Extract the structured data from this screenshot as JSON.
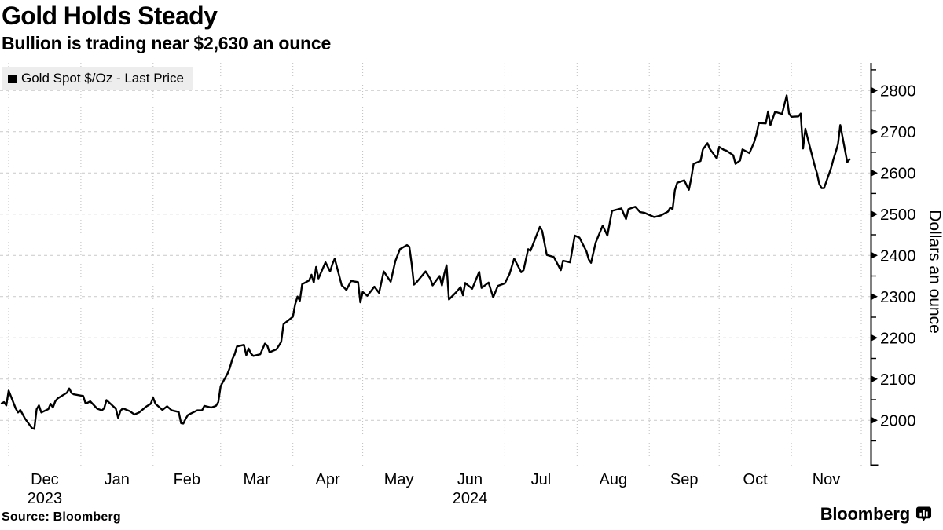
{
  "header": {
    "title": "Gold Holds Steady",
    "subtitle": "Bullion is trading near $2,630 an ounce"
  },
  "legend": {
    "label": "Gold Spot $/Oz - Last Price",
    "swatch_color": "#000000"
  },
  "footer": {
    "source": "Source: Bloomberg",
    "brand": "Bloomberg"
  },
  "colors": {
    "line": "#000000",
    "axis": "#000000",
    "grid_horizontal": "#c9c9c9",
    "grid_vertical": "#bdbdbd",
    "legend_bg": "#ededed",
    "background": "#ffffff",
    "text": "#000000"
  },
  "chart_data": {
    "type": "line",
    "title": "Gold Holds Steady",
    "subtitle": "Bullion is trading near $2,630 an ounce",
    "series_name": "Gold Spot $/Oz - Last Price",
    "xlabel": "",
    "ylabel": "Dollars an ounce",
    "grid": true,
    "legend_position": "top-left",
    "line_color": "#000000",
    "x_domain": [
      "2023-12-01",
      "2024-12-01"
    ],
    "ylim": [
      1890,
      2867
    ],
    "yticks_major": [
      2000,
      2100,
      2200,
      2300,
      2400,
      2500,
      2600,
      2700,
      2800
    ],
    "yticks_minor": [
      1950,
      2050,
      2150,
      2250,
      2350,
      2450,
      2550,
      2650,
      2750,
      2850
    ],
    "x_axis": {
      "months": [
        {
          "label": "Dec",
          "sub": "2023"
        },
        {
          "label": "Jan"
        },
        {
          "label": "Feb"
        },
        {
          "label": "Mar"
        },
        {
          "label": "Apr"
        },
        {
          "label": "May"
        },
        {
          "label": "Jun",
          "sub": "2024"
        },
        {
          "label": "Jul"
        },
        {
          "label": "Aug"
        },
        {
          "label": "Sep"
        },
        {
          "label": "Oct"
        },
        {
          "label": "Nov"
        }
      ]
    },
    "points": [
      [
        "2023-11-28",
        2041
      ],
      [
        "2023-11-29",
        2044
      ],
      [
        "2023-11-30",
        2036
      ],
      [
        "2023-12-01",
        2072
      ],
      [
        "2023-12-04",
        2029
      ],
      [
        "2023-12-05",
        2019
      ],
      [
        "2023-12-06",
        2025
      ],
      [
        "2023-12-08",
        2004
      ],
      [
        "2023-12-11",
        1981
      ],
      [
        "2023-12-12",
        1979
      ],
      [
        "2023-12-13",
        2027
      ],
      [
        "2023-12-14",
        2036
      ],
      [
        "2023-12-15",
        2019
      ],
      [
        "2023-12-18",
        2027
      ],
      [
        "2023-12-19",
        2040
      ],
      [
        "2023-12-20",
        2031
      ],
      [
        "2023-12-21",
        2046
      ],
      [
        "2023-12-22",
        2053
      ],
      [
        "2023-12-26",
        2067
      ],
      [
        "2023-12-27",
        2077
      ],
      [
        "2023-12-28",
        2066
      ],
      [
        "2023-12-29",
        2063
      ],
      [
        "2024-01-02",
        2059
      ],
      [
        "2024-01-03",
        2041
      ],
      [
        "2024-01-04",
        2043
      ],
      [
        "2024-01-05",
        2046
      ],
      [
        "2024-01-08",
        2028
      ],
      [
        "2024-01-10",
        2024
      ],
      [
        "2024-01-11",
        2029
      ],
      [
        "2024-01-12",
        2049
      ],
      [
        "2024-01-16",
        2028
      ],
      [
        "2024-01-17",
        2006
      ],
      [
        "2024-01-18",
        2023
      ],
      [
        "2024-01-19",
        2029
      ],
      [
        "2024-01-22",
        2022
      ],
      [
        "2024-01-24",
        2014
      ],
      [
        "2024-01-26",
        2019
      ],
      [
        "2024-01-29",
        2033
      ],
      [
        "2024-01-31",
        2040
      ],
      [
        "2024-02-01",
        2055
      ],
      [
        "2024-02-02",
        2040
      ],
      [
        "2024-02-05",
        2025
      ],
      [
        "2024-02-07",
        2034
      ],
      [
        "2024-02-09",
        2024
      ],
      [
        "2024-02-12",
        2020
      ],
      [
        "2024-02-13",
        1993
      ],
      [
        "2024-02-14",
        1992
      ],
      [
        "2024-02-15",
        2004
      ],
      [
        "2024-02-16",
        2013
      ],
      [
        "2024-02-20",
        2024
      ],
      [
        "2024-02-22",
        2024
      ],
      [
        "2024-02-23",
        2035
      ],
      [
        "2024-02-26",
        2031
      ],
      [
        "2024-02-28",
        2035
      ],
      [
        "2024-02-29",
        2044
      ],
      [
        "2024-03-01",
        2083
      ],
      [
        "2024-03-04",
        2114
      ],
      [
        "2024-03-05",
        2128
      ],
      [
        "2024-03-06",
        2148
      ],
      [
        "2024-03-07",
        2160
      ],
      [
        "2024-03-08",
        2179
      ],
      [
        "2024-03-11",
        2183
      ],
      [
        "2024-03-12",
        2158
      ],
      [
        "2024-03-13",
        2174
      ],
      [
        "2024-03-14",
        2162
      ],
      [
        "2024-03-15",
        2156
      ],
      [
        "2024-03-18",
        2160
      ],
      [
        "2024-03-20",
        2186
      ],
      [
        "2024-03-21",
        2181
      ],
      [
        "2024-03-22",
        2165
      ],
      [
        "2024-03-25",
        2172
      ],
      [
        "2024-03-27",
        2190
      ],
      [
        "2024-03-28",
        2233
      ],
      [
        "2024-04-01",
        2251
      ],
      [
        "2024-04-02",
        2281
      ],
      [
        "2024-04-03",
        2300
      ],
      [
        "2024-04-04",
        2290
      ],
      [
        "2024-04-05",
        2330
      ],
      [
        "2024-04-08",
        2339
      ],
      [
        "2024-04-09",
        2353
      ],
      [
        "2024-04-10",
        2334
      ],
      [
        "2024-04-11",
        2372
      ],
      [
        "2024-04-12",
        2344
      ],
      [
        "2024-04-15",
        2383
      ],
      [
        "2024-04-17",
        2361
      ],
      [
        "2024-04-18",
        2379
      ],
      [
        "2024-04-19",
        2392
      ],
      [
        "2024-04-22",
        2327
      ],
      [
        "2024-04-23",
        2322
      ],
      [
        "2024-04-24",
        2316
      ],
      [
        "2024-04-26",
        2338
      ],
      [
        "2024-04-29",
        2335
      ],
      [
        "2024-04-30",
        2286
      ],
      [
        "2024-05-01",
        2311
      ],
      [
        "2024-05-03",
        2302
      ],
      [
        "2024-05-06",
        2324
      ],
      [
        "2024-05-08",
        2309
      ],
      [
        "2024-05-10",
        2361
      ],
      [
        "2024-05-13",
        2336
      ],
      [
        "2024-05-15",
        2386
      ],
      [
        "2024-05-17",
        2415
      ],
      [
        "2024-05-20",
        2425
      ],
      [
        "2024-05-21",
        2421
      ],
      [
        "2024-05-22",
        2379
      ],
      [
        "2024-05-23",
        2329
      ],
      [
        "2024-05-24",
        2334
      ],
      [
        "2024-05-28",
        2361
      ],
      [
        "2024-05-30",
        2343
      ],
      [
        "2024-05-31",
        2327
      ],
      [
        "2024-06-03",
        2350
      ],
      [
        "2024-06-04",
        2327
      ],
      [
        "2024-06-05",
        2355
      ],
      [
        "2024-06-06",
        2376
      ],
      [
        "2024-06-07",
        2293
      ],
      [
        "2024-06-10",
        2310
      ],
      [
        "2024-06-12",
        2323
      ],
      [
        "2024-06-13",
        2303
      ],
      [
        "2024-06-14",
        2333
      ],
      [
        "2024-06-17",
        2319
      ],
      [
        "2024-06-20",
        2360
      ],
      [
        "2024-06-21",
        2321
      ],
      [
        "2024-06-24",
        2334
      ],
      [
        "2024-06-26",
        2298
      ],
      [
        "2024-06-28",
        2326
      ],
      [
        "2024-07-01",
        2332
      ],
      [
        "2024-07-03",
        2355
      ],
      [
        "2024-07-05",
        2392
      ],
      [
        "2024-07-08",
        2359
      ],
      [
        "2024-07-09",
        2364
      ],
      [
        "2024-07-11",
        2415
      ],
      [
        "2024-07-12",
        2411
      ],
      [
        "2024-07-16",
        2469
      ],
      [
        "2024-07-17",
        2459
      ],
      [
        "2024-07-19",
        2401
      ],
      [
        "2024-07-22",
        2396
      ],
      [
        "2024-07-25",
        2364
      ],
      [
        "2024-07-26",
        2387
      ],
      [
        "2024-07-29",
        2383
      ],
      [
        "2024-07-31",
        2448
      ],
      [
        "2024-08-02",
        2443
      ],
      [
        "2024-08-05",
        2410
      ],
      [
        "2024-08-06",
        2390
      ],
      [
        "2024-08-07",
        2382
      ],
      [
        "2024-08-09",
        2431
      ],
      [
        "2024-08-12",
        2472
      ],
      [
        "2024-08-14",
        2448
      ],
      [
        "2024-08-16",
        2508
      ],
      [
        "2024-08-20",
        2514
      ],
      [
        "2024-08-22",
        2488
      ],
      [
        "2024-08-23",
        2512
      ],
      [
        "2024-08-26",
        2518
      ],
      [
        "2024-08-28",
        2505
      ],
      [
        "2024-08-30",
        2503
      ],
      [
        "2024-09-03",
        2493
      ],
      [
        "2024-09-04",
        2494
      ],
      [
        "2024-09-06",
        2497
      ],
      [
        "2024-09-09",
        2506
      ],
      [
        "2024-09-10",
        2516
      ],
      [
        "2024-09-11",
        2512
      ],
      [
        "2024-09-12",
        2558
      ],
      [
        "2024-09-13",
        2576
      ],
      [
        "2024-09-16",
        2582
      ],
      [
        "2024-09-18",
        2559
      ],
      [
        "2024-09-19",
        2587
      ],
      [
        "2024-09-20",
        2622
      ],
      [
        "2024-09-23",
        2629
      ],
      [
        "2024-09-24",
        2657
      ],
      [
        "2024-09-26",
        2672
      ],
      [
        "2024-09-27",
        2658
      ],
      [
        "2024-09-30",
        2635
      ],
      [
        "2024-10-01",
        2663
      ],
      [
        "2024-10-03",
        2656
      ],
      [
        "2024-10-04",
        2654
      ],
      [
        "2024-10-07",
        2643
      ],
      [
        "2024-10-08",
        2622
      ],
      [
        "2024-10-10",
        2630
      ],
      [
        "2024-10-11",
        2657
      ],
      [
        "2024-10-14",
        2648
      ],
      [
        "2024-10-16",
        2674
      ],
      [
        "2024-10-17",
        2693
      ],
      [
        "2024-10-18",
        2721
      ],
      [
        "2024-10-21",
        2720
      ],
      [
        "2024-10-22",
        2749
      ],
      [
        "2024-10-23",
        2716
      ],
      [
        "2024-10-25",
        2748
      ],
      [
        "2024-10-28",
        2743
      ],
      [
        "2024-10-30",
        2788
      ],
      [
        "2024-10-31",
        2744
      ],
      [
        "2024-11-01",
        2736
      ],
      [
        "2024-11-04",
        2737
      ],
      [
        "2024-11-05",
        2744
      ],
      [
        "2024-11-06",
        2659
      ],
      [
        "2024-11-07",
        2707
      ],
      [
        "2024-11-08",
        2684
      ],
      [
        "2024-11-11",
        2618
      ],
      [
        "2024-11-12",
        2599
      ],
      [
        "2024-11-13",
        2573
      ],
      [
        "2024-11-14",
        2563
      ],
      [
        "2024-11-15",
        2563
      ],
      [
        "2024-11-18",
        2611
      ],
      [
        "2024-11-19",
        2632
      ],
      [
        "2024-11-20",
        2650
      ],
      [
        "2024-11-21",
        2670
      ],
      [
        "2024-11-22",
        2716
      ],
      [
        "2024-11-25",
        2626
      ],
      [
        "2024-11-26",
        2633
      ]
    ]
  }
}
